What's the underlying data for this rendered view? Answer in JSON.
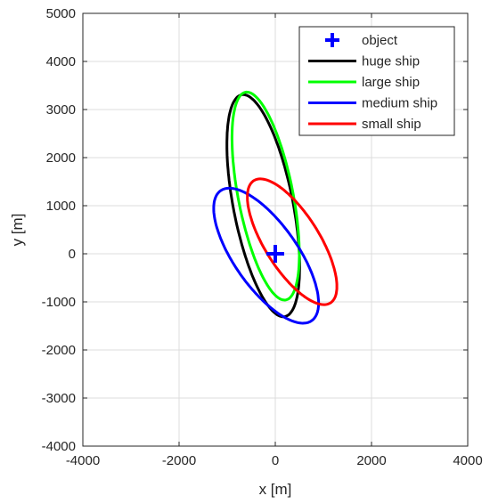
{
  "chart_data": {
    "type": "line",
    "title": "",
    "xlabel": "x [m]",
    "ylabel": "y [m]",
    "xlim": [
      -4000,
      4000
    ],
    "ylim": [
      -4000,
      5000
    ],
    "x_ticks": [
      -4000,
      -2000,
      0,
      2000,
      4000
    ],
    "y_ticks": [
      -4000,
      -3000,
      -2000,
      -1000,
      0,
      1000,
      2000,
      3000,
      4000,
      5000
    ],
    "grid": true,
    "legend_position": "top-right",
    "marker": {
      "name": "object",
      "x": 0,
      "y": 0,
      "symbol": "plus",
      "color": "#0000ff"
    },
    "series": [
      {
        "name": "huge ship",
        "color": "#000000",
        "shape": "ellipse",
        "center": [
          -250,
          1000
        ],
        "semi_major": 2350,
        "semi_minor": 620,
        "major_axis_angle_deg": 101
      },
      {
        "name": "large ship",
        "color": "#00ff00",
        "shape": "ellipse",
        "center": [
          -200,
          1200
        ],
        "semi_major": 2200,
        "semi_minor": 570,
        "major_axis_angle_deg": 101
      },
      {
        "name": "medium ship",
        "color": "#0000ff",
        "shape": "ellipse",
        "center": [
          -190,
          -40
        ],
        "semi_major": 1650,
        "semi_minor": 660,
        "major_axis_angle_deg": 125
      },
      {
        "name": "small ship",
        "color": "#ff0000",
        "shape": "ellipse",
        "center": [
          350,
          250
        ],
        "semi_major": 1500,
        "semi_minor": 570,
        "major_axis_angle_deg": 122
      }
    ]
  }
}
